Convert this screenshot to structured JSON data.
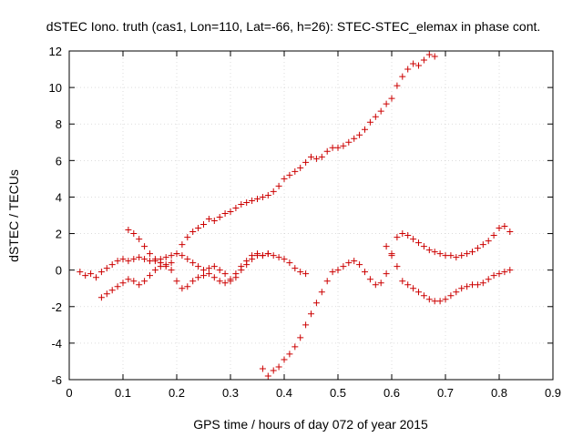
{
  "chart_data": {
    "type": "scatter",
    "title": "dSTEC Iono. truth (cas1, Lon=110, Lat=-66, h=26): STEC-STEC_elemax in phase cont.",
    "xlabel": "GPS time / hours of day 072 of year 2015",
    "ylabel": "dSTEC  / TECUs",
    "xlim": [
      0,
      0.9
    ],
    "ylim": [
      -6,
      12
    ],
    "x_ticks": [
      "0",
      "0.1",
      "0.2",
      "0.3",
      "0.4",
      "0.5",
      "0.6",
      "0.7",
      "0.8",
      "0.9"
    ],
    "y_ticks": [
      "-6",
      "-4",
      "-2",
      "0",
      "2",
      "4",
      "6",
      "8",
      "10",
      "12"
    ],
    "grid": true,
    "marker": "plus",
    "color": "#cc0000",
    "series": [
      {
        "points": [
          [
            0.02,
            -0.1
          ],
          [
            0.03,
            -0.3
          ],
          [
            0.04,
            -0.2
          ],
          [
            0.05,
            -0.4
          ],
          [
            0.06,
            -0.1
          ],
          [
            0.07,
            0.1
          ],
          [
            0.08,
            0.3
          ],
          [
            0.09,
            0.5
          ],
          [
            0.1,
            0.6
          ],
          [
            0.11,
            0.5
          ],
          [
            0.12,
            0.6
          ],
          [
            0.13,
            0.7
          ],
          [
            0.14,
            0.6
          ],
          [
            0.15,
            0.5
          ],
          [
            0.16,
            0.5
          ],
          [
            0.17,
            0.6
          ],
          [
            0.18,
            0.7
          ],
          [
            0.19,
            0.8
          ],
          [
            0.2,
            0.9
          ],
          [
            0.21,
            0.8
          ],
          [
            0.22,
            0.6
          ],
          [
            0.23,
            0.4
          ],
          [
            0.24,
            0.2
          ],
          [
            0.25,
            0.0
          ],
          [
            0.26,
            0.1
          ],
          [
            0.27,
            0.2
          ],
          [
            0.28,
            0.0
          ],
          [
            0.29,
            -0.2
          ],
          [
            0.3,
            -0.5
          ],
          [
            0.31,
            -0.4
          ],
          [
            0.32,
            0.0
          ],
          [
            0.33,
            0.3
          ],
          [
            0.34,
            0.6
          ],
          [
            0.35,
            0.8
          ],
          [
            0.36,
            0.8
          ],
          [
            0.37,
            0.9
          ],
          [
            0.38,
            0.8
          ],
          [
            0.39,
            0.7
          ],
          [
            0.4,
            0.6
          ],
          [
            0.41,
            0.4
          ],
          [
            0.42,
            0.1
          ],
          [
            0.43,
            -0.1
          ],
          [
            0.44,
            -0.2
          ]
        ]
      },
      {
        "points": [
          [
            0.06,
            -1.5
          ],
          [
            0.07,
            -1.3
          ],
          [
            0.08,
            -1.1
          ],
          [
            0.09,
            -0.9
          ],
          [
            0.1,
            -0.7
          ],
          [
            0.11,
            -0.5
          ],
          [
            0.12,
            -0.6
          ],
          [
            0.13,
            -0.8
          ],
          [
            0.14,
            -0.6
          ],
          [
            0.15,
            -0.3
          ],
          [
            0.16,
            0.0
          ],
          [
            0.17,
            0.2
          ],
          [
            0.18,
            0.3
          ],
          [
            0.19,
            0.0
          ],
          [
            0.2,
            -0.6
          ],
          [
            0.21,
            -1.0
          ],
          [
            0.22,
            -0.9
          ],
          [
            0.23,
            -0.6
          ],
          [
            0.24,
            -0.4
          ],
          [
            0.25,
            -0.3
          ],
          [
            0.26,
            -0.2
          ],
          [
            0.27,
            -0.4
          ],
          [
            0.28,
            -0.6
          ],
          [
            0.29,
            -0.7
          ],
          [
            0.3,
            -0.6
          ],
          [
            0.31,
            -0.2
          ],
          [
            0.32,
            0.2
          ],
          [
            0.33,
            0.5
          ],
          [
            0.34,
            0.8
          ],
          [
            0.35,
            0.9
          ],
          [
            0.36,
            0.8
          ],
          [
            0.37,
            0.9
          ]
        ]
      },
      {
        "points": [
          [
            0.11,
            2.2
          ],
          [
            0.12,
            2.0
          ],
          [
            0.13,
            1.7
          ],
          [
            0.14,
            1.3
          ],
          [
            0.15,
            0.9
          ],
          [
            0.16,
            0.6
          ],
          [
            0.17,
            0.4
          ],
          [
            0.18,
            0.2
          ],
          [
            0.19,
            0.4
          ],
          [
            0.2,
            0.9
          ],
          [
            0.21,
            1.4
          ],
          [
            0.22,
            1.8
          ],
          [
            0.23,
            2.1
          ],
          [
            0.24,
            2.3
          ],
          [
            0.25,
            2.5
          ],
          [
            0.26,
            2.8
          ],
          [
            0.27,
            2.7
          ],
          [
            0.28,
            2.9
          ],
          [
            0.29,
            3.1
          ],
          [
            0.3,
            3.2
          ],
          [
            0.31,
            3.4
          ],
          [
            0.32,
            3.6
          ],
          [
            0.33,
            3.7
          ],
          [
            0.34,
            3.8
          ],
          [
            0.35,
            3.9
          ],
          [
            0.36,
            4.0
          ],
          [
            0.37,
            4.1
          ],
          [
            0.38,
            4.3
          ],
          [
            0.39,
            4.6
          ],
          [
            0.4,
            5.0
          ],
          [
            0.41,
            5.2
          ],
          [
            0.42,
            5.4
          ],
          [
            0.43,
            5.6
          ],
          [
            0.44,
            5.9
          ],
          [
            0.45,
            6.2
          ],
          [
            0.46,
            6.1
          ],
          [
            0.47,
            6.2
          ],
          [
            0.48,
            6.5
          ],
          [
            0.49,
            6.7
          ],
          [
            0.5,
            6.7
          ],
          [
            0.51,
            6.8
          ],
          [
            0.52,
            7.0
          ],
          [
            0.53,
            7.2
          ],
          [
            0.54,
            7.4
          ],
          [
            0.55,
            7.7
          ],
          [
            0.56,
            8.1
          ],
          [
            0.57,
            8.4
          ],
          [
            0.58,
            8.7
          ],
          [
            0.59,
            9.1
          ],
          [
            0.6,
            9.4
          ],
          [
            0.61,
            10.1
          ],
          [
            0.62,
            10.6
          ],
          [
            0.63,
            11.0
          ],
          [
            0.64,
            11.3
          ],
          [
            0.65,
            11.2
          ],
          [
            0.66,
            11.5
          ],
          [
            0.67,
            11.8
          ],
          [
            0.68,
            11.7
          ]
        ]
      },
      {
        "points": [
          [
            0.36,
            -5.4
          ],
          [
            0.37,
            -5.8
          ],
          [
            0.38,
            -5.5
          ],
          [
            0.39,
            -5.3
          ],
          [
            0.4,
            -4.9
          ],
          [
            0.41,
            -4.6
          ],
          [
            0.42,
            -4.2
          ],
          [
            0.43,
            -3.7
          ],
          [
            0.44,
            -3.0
          ],
          [
            0.45,
            -2.4
          ],
          [
            0.46,
            -1.8
          ],
          [
            0.47,
            -1.2
          ],
          [
            0.48,
            -0.6
          ],
          [
            0.49,
            -0.1
          ],
          [
            0.5,
            0.0
          ],
          [
            0.51,
            0.2
          ],
          [
            0.52,
            0.4
          ],
          [
            0.53,
            0.5
          ],
          [
            0.54,
            0.3
          ],
          [
            0.55,
            -0.1
          ],
          [
            0.56,
            -0.5
          ],
          [
            0.57,
            -0.8
          ],
          [
            0.58,
            -0.7
          ],
          [
            0.59,
            -0.2
          ],
          [
            0.6,
            0.9
          ],
          [
            0.61,
            1.8
          ],
          [
            0.62,
            2.0
          ],
          [
            0.63,
            1.9
          ],
          [
            0.64,
            1.7
          ],
          [
            0.65,
            1.5
          ],
          [
            0.66,
            1.3
          ],
          [
            0.67,
            1.1
          ],
          [
            0.68,
            1.0
          ],
          [
            0.69,
            0.9
          ],
          [
            0.7,
            0.8
          ],
          [
            0.71,
            0.8
          ],
          [
            0.72,
            0.7
          ],
          [
            0.73,
            0.8
          ],
          [
            0.74,
            0.9
          ],
          [
            0.75,
            1.0
          ],
          [
            0.76,
            1.2
          ],
          [
            0.77,
            1.4
          ],
          [
            0.78,
            1.6
          ],
          [
            0.79,
            1.9
          ],
          [
            0.8,
            2.3
          ],
          [
            0.81,
            2.4
          ],
          [
            0.82,
            2.1
          ]
        ]
      },
      {
        "points": [
          [
            0.59,
            1.3
          ],
          [
            0.6,
            0.8
          ],
          [
            0.61,
            0.2
          ],
          [
            0.62,
            -0.6
          ],
          [
            0.63,
            -0.8
          ],
          [
            0.64,
            -1.0
          ],
          [
            0.65,
            -1.2
          ],
          [
            0.66,
            -1.4
          ],
          [
            0.67,
            -1.6
          ],
          [
            0.68,
            -1.7
          ],
          [
            0.69,
            -1.7
          ],
          [
            0.7,
            -1.6
          ],
          [
            0.71,
            -1.4
          ],
          [
            0.72,
            -1.2
          ],
          [
            0.73,
            -1.0
          ],
          [
            0.74,
            -0.9
          ],
          [
            0.75,
            -0.8
          ],
          [
            0.76,
            -0.8
          ],
          [
            0.77,
            -0.7
          ],
          [
            0.78,
            -0.5
          ],
          [
            0.79,
            -0.3
          ],
          [
            0.8,
            -0.2
          ],
          [
            0.81,
            -0.1
          ],
          [
            0.82,
            0.0
          ]
        ]
      }
    ]
  }
}
